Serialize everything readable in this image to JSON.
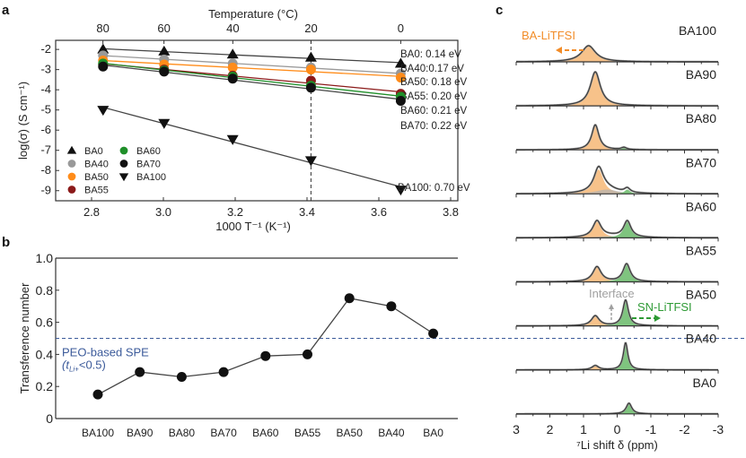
{
  "chart_data": [
    {
      "panel": "a",
      "type": "scatter",
      "title": "",
      "xlabel": "1000 T⁻¹ (K⁻¹)",
      "ylabel": "log(σ) (S cm⁻¹)",
      "top_xlabel": "Temperature (°C)",
      "top_ticks": [
        80,
        60,
        40,
        20,
        0
      ],
      "xticks": [
        "2.8",
        "3.0",
        "3.2",
        "3.4",
        "3.6",
        "3.8"
      ],
      "yticks": [
        "-2",
        "-3",
        "-4",
        "-5",
        "-6",
        "-7",
        "-8",
        "-9"
      ],
      "xlim": [
        2.7,
        3.82
      ],
      "ylim": [
        -9.5,
        -1.55
      ],
      "x": [
        2.832,
        3.002,
        3.193,
        3.411,
        3.661
      ],
      "vline_x": 3.411,
      "legend_position": "bottom-left",
      "series": [
        {
          "name": "BA0",
          "marker": "triangle-up",
          "color": "#111111",
          "values": [
            -2.0,
            -2.1,
            -2.25,
            -2.4,
            -2.7
          ],
          "ea_label": "BA0: 0.14 eV"
        },
        {
          "name": "BA40",
          "marker": "circle",
          "color": "#999999",
          "values": [
            -2.3,
            -2.5,
            -2.7,
            -2.9,
            -3.2
          ],
          "ea_label": "BA40:0.17 eV"
        },
        {
          "name": "BA50",
          "marker": "circle",
          "color": "#ff8c1a",
          "values": [
            -2.55,
            -2.75,
            -2.9,
            -3.0,
            -3.4
          ],
          "ea_label": "BA50: 0.18 eV"
        },
        {
          "name": "BA55",
          "marker": "circle",
          "color": "#8b1a1a",
          "values": [
            -2.75,
            -3.0,
            -3.3,
            -3.55,
            -4.2
          ],
          "ea_label": "BA55: 0.20 eV"
        },
        {
          "name": "BA60",
          "marker": "circle",
          "color": "#1f8f2a",
          "values": [
            -2.7,
            -3.05,
            -3.35,
            -3.8,
            -4.35
          ],
          "ea_label": "BA60: 0.21 eV"
        },
        {
          "name": "BA70",
          "marker": "circle",
          "color": "#111111",
          "values": [
            -2.85,
            -3.1,
            -3.45,
            -3.9,
            -4.55
          ],
          "ea_label": "BA70: 0.22 eV"
        },
        {
          "name": "BA100",
          "marker": "triangle-down",
          "color": "#111111",
          "values": [
            -5.0,
            -5.65,
            -6.45,
            -7.5,
            -8.95
          ],
          "ea_label": "BA100: 0.70 eV"
        }
      ]
    },
    {
      "panel": "b",
      "type": "line",
      "xlabel": "",
      "ylabel": "Transference number",
      "categories": [
        "BA100",
        "BA90",
        "BA80",
        "BA70",
        "BA60",
        "BA55",
        "BA50",
        "BA40",
        "BA0"
      ],
      "values": [
        0.15,
        0.29,
        0.26,
        0.29,
        0.39,
        0.4,
        0.75,
        0.7,
        0.53
      ],
      "yticks": [
        "0",
        "0.2",
        "0.4",
        "0.6",
        "0.8",
        "1.0"
      ],
      "ylim": [
        0,
        1.0
      ],
      "reference_line": 0.5,
      "reference_label": "PEO-based SPE",
      "reference_sublabel": "(t",
      "reference_sub": "Li+",
      "reference_sublabel_end": "<0.5)",
      "reference_color": "#3b5a9a"
    },
    {
      "panel": "c",
      "type": "area",
      "xlabel": "⁷Li shift δ (ppm)",
      "xticks": [
        "3",
        "2",
        "1",
        "0",
        "-1",
        "-2",
        "-3"
      ],
      "xlim": [
        3,
        -3
      ],
      "colors": {
        "ba": "#f7c28a",
        "sn": "#7fc47f",
        "interface": "#b0b0b0"
      },
      "annotations": {
        "ba": "BA-LiTFSI",
        "sn": "SN-LiTFSI",
        "interface": "Interface"
      },
      "spectra": [
        {
          "name": "BA100",
          "peaks": [
            {
              "type": "ba",
              "center": 0.85,
              "height": 0.45,
              "width": 0.25
            }
          ]
        },
        {
          "name": "BA90",
          "peaks": [
            {
              "type": "ba",
              "center": 0.65,
              "height": 0.95,
              "width": 0.18
            }
          ]
        },
        {
          "name": "BA80",
          "peaks": [
            {
              "type": "ba",
              "center": 0.65,
              "height": 0.7,
              "width": 0.13
            },
            {
              "type": "sn",
              "center": -0.2,
              "height": 0.06,
              "width": 0.1
            }
          ]
        },
        {
          "name": "BA70",
          "peaks": [
            {
              "type": "ba",
              "center": 0.55,
              "height": 0.68,
              "width": 0.17
            },
            {
              "type": "interface",
              "center": 0.3,
              "height": 0.12,
              "width": 0.4
            },
            {
              "type": "sn",
              "center": -0.3,
              "height": 0.12,
              "width": 0.1
            }
          ]
        },
        {
          "name": "BA60",
          "peaks": [
            {
              "type": "ba",
              "center": 0.6,
              "height": 0.45,
              "width": 0.15
            },
            {
              "type": "interface",
              "center": 0.2,
              "height": 0.05,
              "width": 0.5
            },
            {
              "type": "sn",
              "center": -0.3,
              "height": 0.45,
              "width": 0.13
            }
          ]
        },
        {
          "name": "BA55",
          "peaks": [
            {
              "type": "ba",
              "center": 0.6,
              "height": 0.42,
              "width": 0.15
            },
            {
              "type": "sn",
              "center": -0.28,
              "height": 0.5,
              "width": 0.13
            }
          ]
        },
        {
          "name": "BA50",
          "peaks": [
            {
              "type": "ba",
              "center": 0.65,
              "height": 0.28,
              "width": 0.14
            },
            {
              "type": "sn",
              "center": -0.25,
              "height": 0.72,
              "width": 0.1
            }
          ]
        },
        {
          "name": "BA40",
          "peaks": [
            {
              "type": "ba",
              "center": 0.65,
              "height": 0.12,
              "width": 0.12
            },
            {
              "type": "sn",
              "center": -0.25,
              "height": 0.76,
              "width": 0.08
            }
          ]
        },
        {
          "name": "BA0",
          "peaks": [
            {
              "type": "sn",
              "center": -0.35,
              "height": 0.3,
              "width": 0.1
            }
          ]
        }
      ]
    }
  ],
  "panel_labels": [
    "a",
    "b",
    "c"
  ]
}
